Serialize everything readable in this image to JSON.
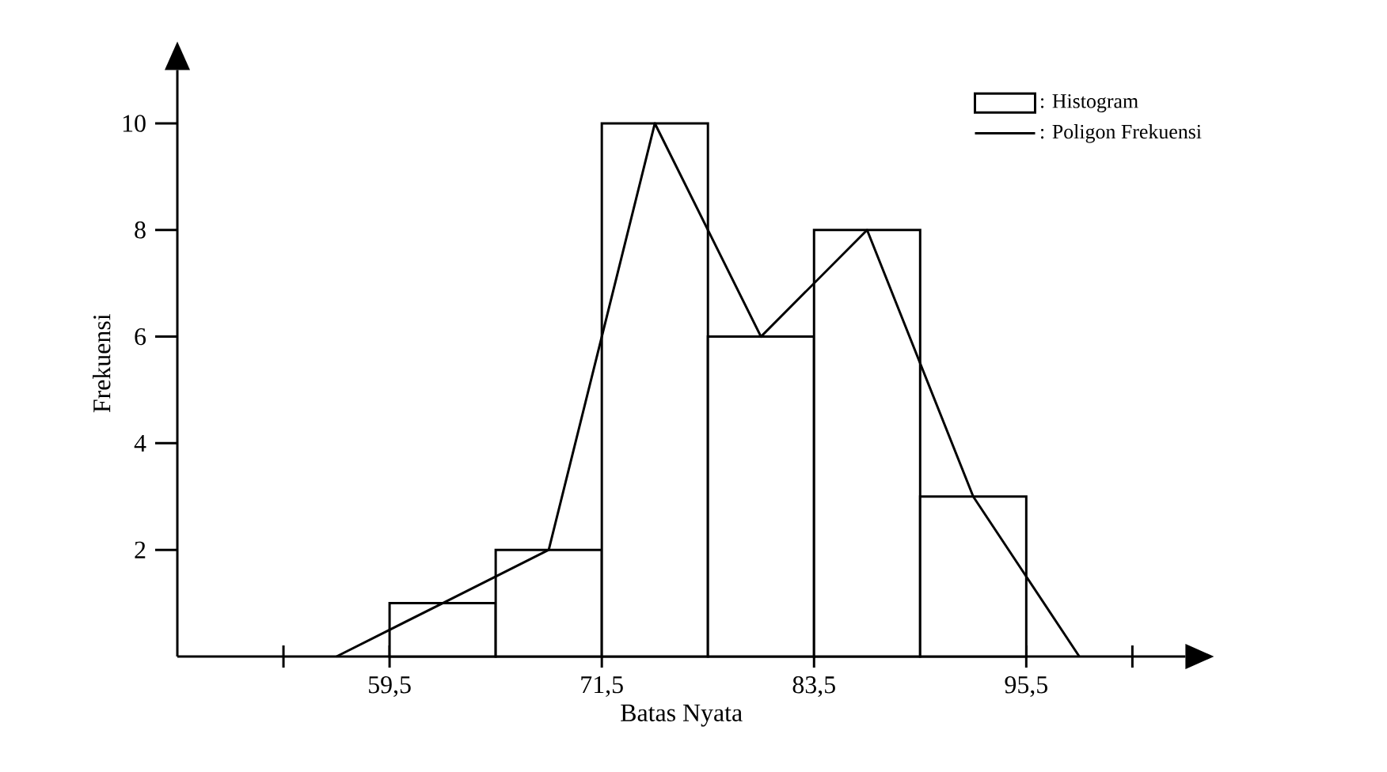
{
  "chart_data": {
    "type": "histogram",
    "xlabel": "Batas Nyata",
    "ylabel": "Frekuensi",
    "series": [
      {
        "name": ": Histogram",
        "type": "histogram",
        "color": "#000000",
        "bins": [
          59.5,
          65.5,
          71.5,
          77.5,
          83.5,
          89.5,
          95.5
        ],
        "values": [
          1,
          2,
          10,
          6,
          8,
          3
        ]
      },
      {
        "name": ": Poligon Frekuensi",
        "type": "line",
        "color": "#000000",
        "x": [
          56.5,
          62.5,
          68.5,
          74.5,
          80.5,
          86.5,
          92.5,
          98.5
        ],
        "values": [
          0,
          1,
          2,
          10,
          6,
          8,
          3,
          0
        ]
      }
    ],
    "xlim": [
      47.5,
      104.5
    ],
    "ylim": [
      0,
      11
    ],
    "xticks": [
      {
        "value": 53.5,
        "label": null
      },
      {
        "value": 59.5,
        "label": "59,5"
      },
      {
        "value": 71.5,
        "label": "71,5"
      },
      {
        "value": 83.5,
        "label": "83,5"
      },
      {
        "value": 95.5,
        "label": "95,5"
      },
      {
        "value": 101.5,
        "label": null
      }
    ],
    "yticks": [
      2,
      4,
      6,
      8,
      10
    ],
    "legend": "top right",
    "marker": "none"
  }
}
